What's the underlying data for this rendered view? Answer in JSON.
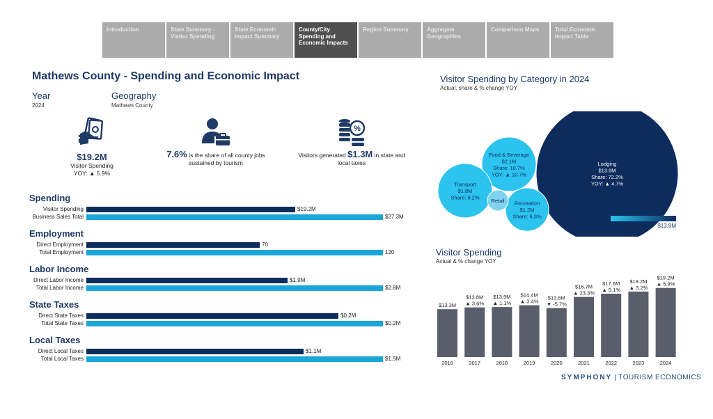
{
  "tabs": [
    {
      "label": "Introduction"
    },
    {
      "label": "State Summary - Visitor Spending"
    },
    {
      "label": "State Economic Impact Summary"
    },
    {
      "label": "County/City Spending and Economic Impacts",
      "active": true
    },
    {
      "label": "Region Summary"
    },
    {
      "label": "Aggregate Geographies"
    },
    {
      "label": "Comparison Maps"
    },
    {
      "label": "Total Economic Impact Table"
    }
  ],
  "header": {
    "title": "Mathews County - Spending and Economic Impact",
    "year_label": "Year",
    "year_value": "2024",
    "geo_label": "Geography",
    "geo_value": "Mathews County"
  },
  "kpis": {
    "spending_value": "$19.2M",
    "spending_label": "Visitor Spending",
    "spending_yoy": "YOY: ▲ 5.9%",
    "jobs_value": "7.6%",
    "jobs_text": " is the share of all county jobs sustained by tourism",
    "taxes_pre": "Visitors generated ",
    "taxes_value": "$1.3M",
    "taxes_post": " in state and local taxes"
  },
  "sections": [
    {
      "title": "Spending",
      "rows": [
        {
          "label": "Visitor Spending",
          "value": 19.2,
          "display": "$19.2M",
          "tone": "dark"
        },
        {
          "label": "Business Sales Total",
          "value": 27.3,
          "display": "$27.3M",
          "tone": "light"
        }
      ]
    },
    {
      "title": "Employment",
      "rows": [
        {
          "label": "Direct Employment",
          "value": 70,
          "display": "70",
          "tone": "dark"
        },
        {
          "label": "Total Employment",
          "value": 120,
          "display": "120",
          "tone": "light"
        }
      ]
    },
    {
      "title": "Labor Income",
      "rows": [
        {
          "label": "Direct Labor Income",
          "value": 1.9,
          "display": "$1.9M",
          "tone": "dark"
        },
        {
          "label": "Total Labor Income",
          "value": 2.8,
          "display": "$2.8M",
          "tone": "light"
        }
      ]
    },
    {
      "title": "State Taxes",
      "rows": [
        {
          "label": "Direct State Taxes",
          "value": 0.17,
          "display": "$0.2M",
          "tone": "dark"
        },
        {
          "label": "Total State Taxes",
          "value": 0.2,
          "display": "$0.2M",
          "tone": "light"
        }
      ]
    },
    {
      "title": "Local Taxes",
      "rows": [
        {
          "label": "Direct Local Taxes",
          "value": 1.1,
          "display": "$1.1M",
          "tone": "dark"
        },
        {
          "label": "Total Local Taxes",
          "value": 1.5,
          "display": "$1.5M",
          "tone": "light"
        }
      ]
    }
  ],
  "bubble_chart": {
    "title": "Visitor Spending by Category in 2024",
    "subtitle": "Actual, share & % change YOY",
    "legend_min": "",
    "legend_max": "$13.9M",
    "bubbles": [
      {
        "name": "Lodging",
        "lines": [
          "Lodging",
          "$13.9M",
          "Share: 72.2%",
          "YOY: ▲ 4.7%"
        ]
      },
      {
        "name": "Food & Beverage",
        "lines": [
          "Food & Beverage",
          "$2.1M",
          "Share: 10.7%",
          "YOY: ▲ 10.7%"
        ]
      },
      {
        "name": "Transport",
        "lines": [
          "Transport",
          "$1.8M",
          "Share: 9.2%"
        ]
      },
      {
        "name": "Recreation",
        "lines": [
          "Recreation",
          "$1.2M",
          "Share: 6.3%"
        ]
      },
      {
        "name": "Retail",
        "lines": [
          "Retail"
        ]
      }
    ]
  },
  "chart_data": {
    "type": "bar",
    "title": "Visitor Spending",
    "subtitle": "Actual & % change YOY",
    "categories": [
      "2016",
      "2017",
      "2018",
      "2019",
      "2020",
      "2021",
      "2022",
      "2023",
      "2024"
    ],
    "values": [
      13.3,
      13.8,
      13.9,
      14.4,
      13.6,
      16.7,
      17.6,
      18.2,
      19.2
    ],
    "value_labels": [
      "$13.3M",
      "$13.8M",
      "$13.9M",
      "$14.4M",
      "$13.6M",
      "$16.7M",
      "$17.6M",
      "$18.2M",
      "$19.2M"
    ],
    "yoy_labels": [
      "",
      "▲ 3.6%",
      "▲ 1.1%",
      "▲ 3.4%",
      "▼ -5.7%",
      "▲ 23.3%",
      "▲ 5.1%",
      "▲ 3.2%",
      "▲ 5.9%"
    ],
    "ylim": [
      0,
      20.5
    ],
    "xlabel": "",
    "ylabel": ""
  },
  "brand": {
    "name": "SYMPHONY",
    "sep": "|",
    "tag": "TOURISM ECONOMICS"
  },
  "colors": {
    "dark": "#0c2c5e",
    "light": "#1aa6d8",
    "bar": "#5a5e6b"
  }
}
